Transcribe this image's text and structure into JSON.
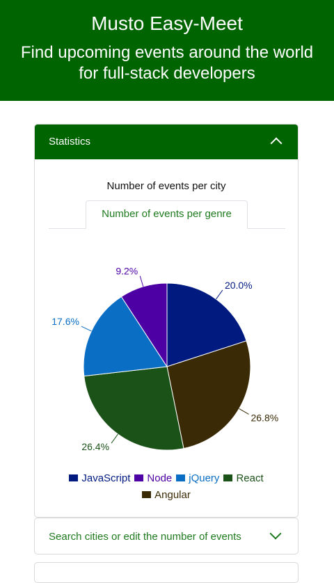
{
  "header": {
    "title": "Musto Easy-Meet",
    "tagline": "Find upcoming events around the world for full-stack developers"
  },
  "statistics": {
    "label": "Statistics",
    "expanded": true,
    "city_tab_label": "Number of events per city",
    "genre_tab_label": "Number of events per genre"
  },
  "chart_data": {
    "type": "pie",
    "title": "",
    "slices": [
      {
        "name": "JavaScript",
        "value": 20.0,
        "label": "20.0%",
        "color": "#001a80"
      },
      {
        "name": "Angular",
        "value": 26.8,
        "label": "26.8%",
        "color": "#3a2a06"
      },
      {
        "name": "React",
        "value": 26.4,
        "label": "26.4%",
        "color": "#1a5218"
      },
      {
        "name": "jQuery",
        "value": 17.6,
        "label": "17.6%",
        "color": "#0a6ec4"
      },
      {
        "name": "Node",
        "value": 9.2,
        "label": "9.2%",
        "color": "#4d00a3"
      }
    ],
    "legend_order": [
      "JavaScript",
      "Node",
      "jQuery",
      "React",
      "Angular"
    ],
    "legend_placement": "bottom"
  },
  "search_panel": {
    "label": "Search cities or edit the number of events",
    "expanded": false
  }
}
